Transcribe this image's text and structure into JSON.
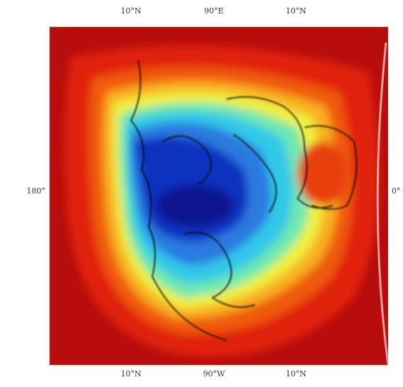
{
  "map": {
    "labels": {
      "top": [
        "10°N",
        "90°E",
        "10°N"
      ],
      "bottom": [
        "10°N",
        "90°W",
        "10°N"
      ],
      "left": "180°",
      "right": "0°"
    }
  }
}
